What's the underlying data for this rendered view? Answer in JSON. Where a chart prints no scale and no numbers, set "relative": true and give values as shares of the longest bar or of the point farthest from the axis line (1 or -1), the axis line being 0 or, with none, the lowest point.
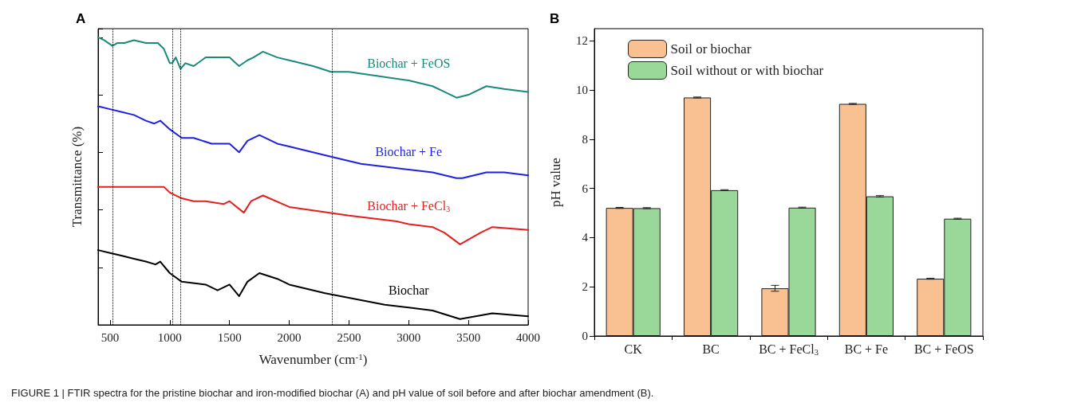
{
  "chart_data": [
    {
      "type": "line",
      "title": "A",
      "xlabel": "Wavenumber (cm$^{-1}$)",
      "ylabel": "Transmittance (%)",
      "relative": true,
      "xlim": [
        400,
        4000
      ],
      "xticks": [
        500,
        1000,
        1500,
        2000,
        2500,
        3000,
        3500,
        4000
      ],
      "line_style": "solid",
      "ref_lines": [
        {
          "axis": "x",
          "value": 520,
          "line_style": "dotted",
          "color": "#000000"
        },
        {
          "axis": "x",
          "value": 1020,
          "line_style": "dotted",
          "color": "#000000"
        },
        {
          "axis": "x",
          "value": 1090,
          "line_style": "dotted",
          "color": "#000000"
        },
        {
          "axis": "x",
          "value": 2360,
          "line_style": "dotted",
          "color": "#000000"
        }
      ],
      "annotations": [
        "FIGURE 1 | FTIR spectra for the pristine biochar and iron-modified biochar (A) and pH value of soil before and after biochar amendment (B)."
      ],
      "series": [
        {
          "name": "Biochar + FeOS",
          "color": "#1a8a7a",
          "x": [
            400,
            450,
            520,
            560,
            620,
            700,
            800,
            900,
            950,
            1000,
            1020,
            1050,
            1090,
            1130,
            1200,
            1300,
            1450,
            1500,
            1580,
            1650,
            1700,
            1780,
            1900,
            2000,
            2200,
            2350,
            2500,
            3000,
            3200,
            3300,
            3400,
            3500,
            3650,
            3800,
            4000
          ],
          "values": [
            1.0,
            0.99,
            0.97,
            0.98,
            0.98,
            0.99,
            0.98,
            0.98,
            0.96,
            0.91,
            0.91,
            0.93,
            0.89,
            0.91,
            0.9,
            0.93,
            0.93,
            0.93,
            0.9,
            0.92,
            0.93,
            0.95,
            0.93,
            0.92,
            0.9,
            0.88,
            0.88,
            0.85,
            0.83,
            0.81,
            0.79,
            0.8,
            0.83,
            0.82,
            0.81
          ]
        },
        {
          "name": "Biochar + Fe",
          "color": "#1f1fe6",
          "x": [
            400,
            500,
            600,
            700,
            800,
            870,
            920,
            1000,
            1100,
            1200,
            1350,
            1450,
            1500,
            1580,
            1650,
            1750,
            1900,
            2000,
            2300,
            2600,
            3000,
            3200,
            3400,
            3450,
            3650,
            3800,
            4000
          ],
          "values": [
            0.76,
            0.75,
            0.74,
            0.73,
            0.71,
            0.7,
            0.71,
            0.68,
            0.65,
            0.65,
            0.63,
            0.63,
            0.63,
            0.6,
            0.64,
            0.66,
            0.63,
            0.62,
            0.59,
            0.56,
            0.54,
            0.53,
            0.51,
            0.51,
            0.53,
            0.53,
            0.52
          ]
        },
        {
          "name": "Biochar + FeCl$_{3}$",
          "color": "#e61e1e",
          "x": [
            400,
            700,
            900,
            950,
            1000,
            1100,
            1200,
            1300,
            1450,
            1500,
            1620,
            1680,
            1780,
            2000,
            2500,
            2900,
            3000,
            3200,
            3300,
            3430,
            3600,
            3700,
            4000
          ],
          "values": [
            0.48,
            0.48,
            0.48,
            0.48,
            0.46,
            0.44,
            0.43,
            0.43,
            0.42,
            0.43,
            0.39,
            0.43,
            0.45,
            0.41,
            0.38,
            0.36,
            0.35,
            0.34,
            0.32,
            0.28,
            0.32,
            0.34,
            0.33
          ]
        },
        {
          "name": "Biochar",
          "color": "#000000",
          "x": [
            400,
            500,
            600,
            700,
            800,
            880,
            920,
            1000,
            1100,
            1300,
            1400,
            1500,
            1580,
            1650,
            1750,
            1900,
            2000,
            2300,
            2800,
            3000,
            3200,
            3430,
            3700,
            4000
          ],
          "values": [
            0.26,
            0.25,
            0.24,
            0.23,
            0.22,
            0.21,
            0.22,
            0.18,
            0.15,
            0.14,
            0.12,
            0.14,
            0.1,
            0.15,
            0.18,
            0.16,
            0.14,
            0.11,
            0.07,
            0.06,
            0.05,
            0.02,
            0.04,
            0.03
          ]
        }
      ]
    },
    {
      "type": "bar",
      "title": "B",
      "ylabel": "pH value",
      "categories": [
        "CK",
        "BC",
        "BC + FeCl$_{3}$",
        "BC + Fe",
        "BC + FeOS"
      ],
      "ylim": [
        0,
        12.5
      ],
      "yticks": [
        0,
        2,
        4,
        6,
        8,
        10,
        12
      ],
      "legend": "top left",
      "series": [
        {
          "name": "Soil or biochar",
          "color": "#f9c192",
          "values": [
            5.21,
            9.7,
            1.94,
            9.44,
            2.33
          ],
          "errors": [
            0.02,
            0.02,
            0.12,
            0.02,
            0.02
          ]
        },
        {
          "name": "Soil without or with biochar",
          "color": "#9ad89a",
          "values": [
            5.2,
            5.93,
            5.22,
            5.68,
            4.77
          ],
          "errors": [
            0.02,
            0.02,
            0.02,
            0.03,
            0.02
          ]
        }
      ]
    }
  ]
}
